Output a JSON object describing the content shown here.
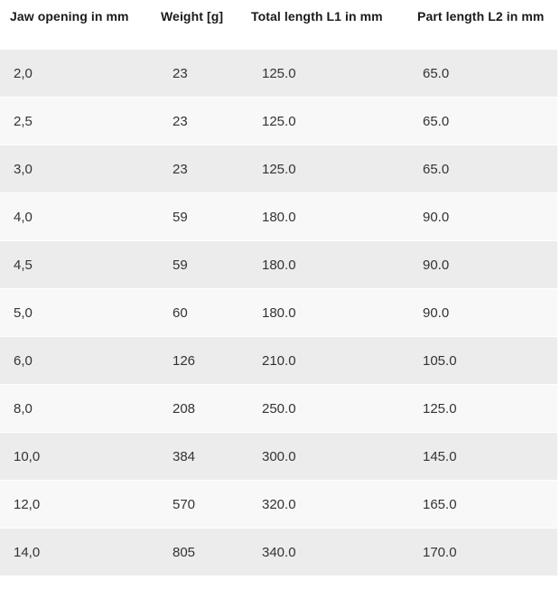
{
  "chart_data": {
    "type": "table",
    "title": "",
    "columns": [
      "Jaw opening in mm",
      "Weight [g]",
      "Total length L1 in mm",
      "Part length L2 in mm"
    ],
    "rows": [
      [
        "2,0",
        "23",
        "125.0",
        "65.0"
      ],
      [
        "2,5",
        "23",
        "125.0",
        "65.0"
      ],
      [
        "3,0",
        "23",
        "125.0",
        "65.0"
      ],
      [
        "4,0",
        "59",
        "180.0",
        "90.0"
      ],
      [
        "4,5",
        "59",
        "180.0",
        "90.0"
      ],
      [
        "5,0",
        "60",
        "180.0",
        "90.0"
      ],
      [
        "6,0",
        "126",
        "210.0",
        "105.0"
      ],
      [
        "8,0",
        "208",
        "250.0",
        "125.0"
      ],
      [
        "10,0",
        "384",
        "300.0",
        "145.0"
      ],
      [
        "12,0",
        "570",
        "320.0",
        "165.0"
      ],
      [
        "14,0",
        "805",
        "340.0",
        "170.0"
      ]
    ],
    "layout": {
      "striped": true,
      "first_data_row_shaded": true,
      "header_background": "#ffffff",
      "grid": "none"
    },
    "colors": {
      "row_odd_bg": "#ececec",
      "row_even_bg": "#f8f8f8",
      "header_text": "#1a1a1a",
      "cell_text": "#333333"
    }
  }
}
